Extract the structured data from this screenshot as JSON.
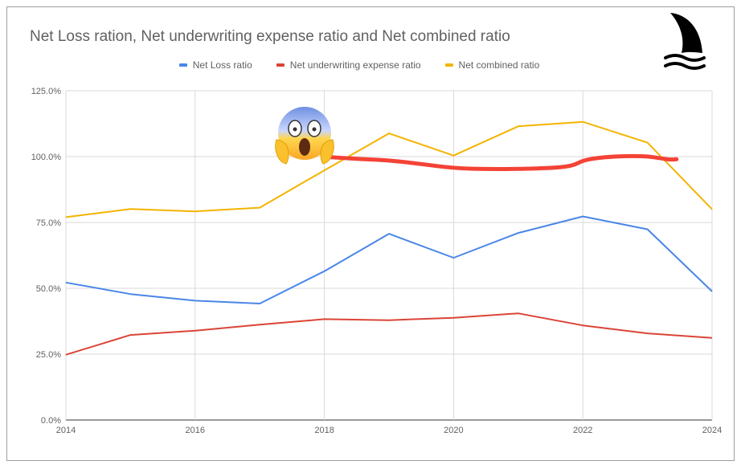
{
  "chart_data": {
    "type": "line",
    "title": "Net Loss ration, Net underwriting expense ratio and Net combined ratio",
    "x": [
      2014,
      2015,
      2016,
      2017,
      2018,
      2019,
      2020,
      2021,
      2022,
      2023,
      2024
    ],
    "xticks": [
      "2014",
      "2016",
      "2018",
      "2020",
      "2022",
      "2024"
    ],
    "xlim": [
      2014,
      2024
    ],
    "ylim": [
      0,
      125
    ],
    "yticks": [
      "0.0%",
      "25.0%",
      "50.0%",
      "75.0%",
      "100.0%",
      "125.0%"
    ],
    "grid": true,
    "legend_position": "top",
    "series": [
      {
        "name": "Net Loss ratio",
        "color": "#4a86e8",
        "values": [
          52.2,
          47.8,
          45.3,
          44.2,
          56.5,
          70.7,
          61.6,
          71.0,
          77.3,
          72.4,
          48.8
        ]
      },
      {
        "name": "Net underwriting expense ratio",
        "color": "#db4437",
        "values": [
          24.8,
          32.3,
          33.9,
          36.2,
          38.3,
          37.9,
          38.8,
          40.5,
          35.9,
          32.9,
          31.2
        ]
      },
      {
        "name": "Net combined ratio",
        "color": "#f4b400",
        "values": [
          77.0,
          80.1,
          79.2,
          80.6,
          94.8,
          108.8,
          100.4,
          111.5,
          113.2,
          105.3,
          80.0
        ]
      }
    ],
    "annotation": {
      "type": "hand-drawn line",
      "color": "#f44336",
      "points": [
        [
          2018.1,
          99.8
        ],
        [
          2018.6,
          99.0
        ],
        [
          2019.0,
          98.6
        ],
        [
          2019.5,
          97.2
        ],
        [
          2020.0,
          95.6
        ],
        [
          2020.6,
          95.2
        ],
        [
          2021.2,
          95.4
        ],
        [
          2021.6,
          95.8
        ],
        [
          2021.85,
          96.6
        ],
        [
          2022.0,
          98.5
        ],
        [
          2022.2,
          99.4
        ],
        [
          2022.5,
          100.1
        ],
        [
          2022.8,
          100.2
        ],
        [
          2023.0,
          100.1
        ],
        [
          2023.2,
          99.4
        ],
        [
          2023.35,
          98.8
        ],
        [
          2023.45,
          99.0
        ]
      ]
    }
  },
  "logo": {
    "icon": "shark-fin-icon",
    "color": "#000000"
  },
  "emoji": {
    "icon": "face-screaming-in-fear-icon"
  }
}
